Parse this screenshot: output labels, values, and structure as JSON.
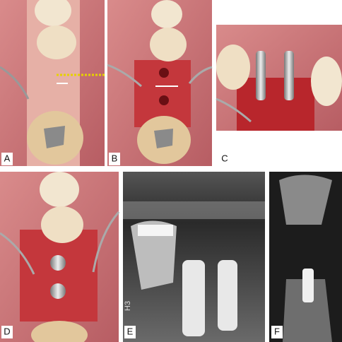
{
  "panels": [
    {
      "label": "A"
    },
    {
      "label": "B"
    },
    {
      "label": "C"
    },
    {
      "label": "D"
    },
    {
      "label": "E"
    },
    {
      "label": "F"
    }
  ],
  "radiograph_text": "H3"
}
